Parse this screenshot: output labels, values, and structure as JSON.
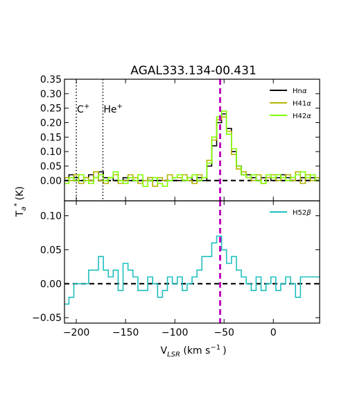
{
  "chart_data": [
    {
      "type": "line",
      "panel": "top",
      "title": "AGAL333.134-00.431",
      "ylabel": "T",
      "ylabel_sub": "a",
      "ylabel_sup": "*",
      "ylabel_unit": "(K)",
      "xlim": [
        -212,
        47
      ],
      "ylim": [
        -0.07,
        0.35
      ],
      "yticks": [
        0.0,
        0.05,
        0.1,
        0.15,
        0.2,
        0.25,
        0.3,
        0.35
      ],
      "ytick_labels": [
        "0.00",
        "0.05",
        "0.10",
        "0.15",
        "0.20",
        "0.25",
        "0.30",
        "0.35"
      ],
      "grid": false,
      "legend_position": "top-right",
      "vlines": [
        {
          "x": -54,
          "color": "#bf00bf",
          "style": "dashed"
        },
        {
          "x": -200,
          "color": "#000000",
          "style": "dotted"
        },
        {
          "x": -173,
          "color": "#000000",
          "style": "dotted"
        }
      ],
      "hline": {
        "y": 0,
        "color": "#000000",
        "style": "dashed"
      },
      "annotations": [
        {
          "label": "C",
          "sup": "+",
          "x": -200,
          "y": 0.5
        },
        {
          "label": "He",
          "sup": "+",
          "x": -173,
          "y": 0.5
        }
      ],
      "step": 5,
      "x": [
        -210,
        -205,
        -200,
        -195,
        -190,
        -185,
        -180,
        -175,
        -170,
        -165,
        -160,
        -155,
        -150,
        -145,
        -140,
        -135,
        -130,
        -125,
        -120,
        -115,
        -110,
        -105,
        -100,
        -95,
        -90,
        -85,
        -80,
        -75,
        -70,
        -65,
        -60,
        -55,
        -50,
        -45,
        -40,
        -35,
        -30,
        -25,
        -20,
        -15,
        -10,
        -5,
        0,
        5,
        10,
        15,
        20,
        25,
        30,
        35,
        40,
        45
      ],
      "series": [
        {
          "name": "Hnα",
          "name_base": "Hn",
          "name_greek": "α",
          "color": "#000000",
          "values": [
            0.0,
            0.02,
            0.01,
            0.0,
            0.01,
            0.02,
            0.01,
            0.03,
            0.01,
            0.01,
            0.0,
            0.0,
            0.01,
            0.0,
            0.0,
            0.0,
            0.0,
            0.01,
            0.0,
            0.0,
            0.0,
            0.0,
            0.0,
            0.0,
            0.0,
            0.01,
            0.0,
            0.01,
            0.0,
            0.05,
            0.12,
            0.2,
            0.23,
            0.18,
            0.1,
            0.05,
            0.02,
            0.02,
            0.01,
            0.0,
            0.01,
            0.01,
            0.0,
            0.01,
            0.02,
            0.01,
            0.01,
            0.0,
            0.01,
            0.0,
            0.01,
            0.0
          ]
        },
        {
          "name": "H41α",
          "name_base": "H41",
          "name_greek": "α",
          "color": "#b3b300",
          "values": [
            0.01,
            0.0,
            0.02,
            -0.01,
            0.01,
            0.0,
            0.03,
            0.0,
            -0.01,
            0.01,
            0.02,
            -0.01,
            0.0,
            0.02,
            0.01,
            -0.01,
            0.0,
            0.01,
            -0.02,
            0.01,
            0.0,
            0.02,
            0.01,
            0.01,
            0.02,
            0.0,
            -0.01,
            0.02,
            0.01,
            0.07,
            0.14,
            0.21,
            0.22,
            0.17,
            0.09,
            0.04,
            0.03,
            0.01,
            0.0,
            0.02,
            -0.01,
            0.01,
            0.02,
            0.0,
            0.01,
            0.02,
            0.0,
            0.03,
            -0.01,
            0.02,
            0.0,
            0.01
          ]
        },
        {
          "name": "H42α",
          "name_base": "H42",
          "name_greek": "α",
          "color": "#80ff00",
          "values": [
            -0.01,
            0.01,
            0.0,
            0.02,
            0.0,
            -0.01,
            0.01,
            0.02,
            0.0,
            0.01,
            0.03,
            0.0,
            -0.01,
            0.01,
            0.0,
            0.02,
            -0.02,
            0.0,
            0.01,
            -0.01,
            -0.02,
            0.0,
            0.01,
            0.02,
            0.0,
            0.01,
            0.02,
            0.0,
            0.01,
            0.06,
            0.15,
            0.22,
            0.24,
            0.16,
            0.11,
            0.05,
            0.02,
            0.01,
            0.02,
            0.0,
            -0.01,
            0.02,
            0.01,
            0.02,
            0.01,
            0.0,
            0.01,
            0.02,
            0.03,
            0.01,
            0.02,
            0.0
          ]
        }
      ]
    },
    {
      "type": "line",
      "panel": "bottom",
      "xlabel": "V",
      "xlabel_sub": "LSR",
      "xlabel_unit_a": " (km s",
      "xlabel_unit_sup": "−1",
      "xlabel_unit_b": ")",
      "xlim": [
        -212,
        47
      ],
      "ylim": [
        -0.058,
        0.122
      ],
      "yticks": [
        -0.05,
        0.0,
        0.05,
        0.1
      ],
      "ytick_labels": [
        "−0.05",
        "0.00",
        "0.05",
        "0.10"
      ],
      "xticks": [
        -200,
        -150,
        -100,
        -50,
        0
      ],
      "xtick_labels": [
        "−200",
        "−150",
        "−100",
        "−50",
        "0"
      ],
      "grid": false,
      "legend_position": "top-right",
      "vlines": [
        {
          "x": -54,
          "color": "#bf00bf",
          "style": "dashed"
        }
      ],
      "hline": {
        "y": 0,
        "color": "#000000",
        "style": "dashed"
      },
      "step": 5,
      "x": [
        -210,
        -205,
        -200,
        -195,
        -190,
        -185,
        -180,
        -175,
        -170,
        -165,
        -160,
        -155,
        -150,
        -145,
        -140,
        -135,
        -130,
        -125,
        -120,
        -115,
        -110,
        -105,
        -100,
        -95,
        -90,
        -85,
        -80,
        -75,
        -70,
        -65,
        -60,
        -55,
        -50,
        -45,
        -40,
        -35,
        -30,
        -25,
        -20,
        -15,
        -10,
        -5,
        0,
        5,
        10,
        15,
        20,
        25,
        30,
        35,
        40,
        45
      ],
      "series": [
        {
          "name": "H52β",
          "name_base": "H52",
          "name_greek": "β",
          "color": "#1fbfbf",
          "values": [
            -0.03,
            -0.02,
            0.0,
            0.0,
            0.0,
            0.02,
            0.02,
            0.04,
            0.02,
            0.01,
            0.02,
            -0.01,
            0.03,
            0.02,
            0.01,
            -0.01,
            -0.01,
            0.01,
            0.0,
            -0.02,
            -0.01,
            0.01,
            0.0,
            0.01,
            -0.01,
            0.0,
            0.01,
            0.02,
            0.04,
            0.04,
            0.06,
            0.07,
            0.05,
            0.03,
            0.04,
            0.02,
            0.01,
            0.0,
            -0.01,
            0.01,
            -0.01,
            0.0,
            0.01,
            -0.01,
            0.0,
            0.01,
            0.0,
            -0.02,
            0.01,
            0.01,
            0.01,
            0.01
          ]
        }
      ]
    }
  ]
}
